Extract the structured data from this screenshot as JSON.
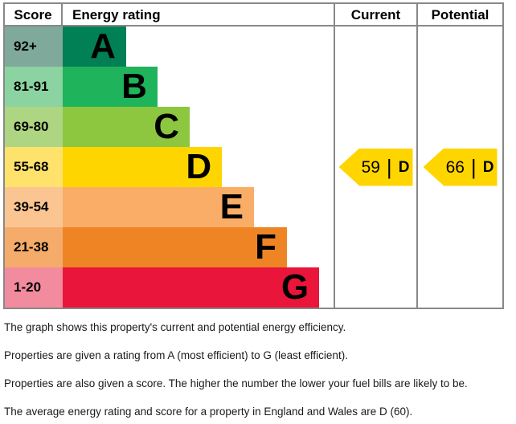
{
  "header": {
    "score": "Score",
    "energy_rating": "Energy rating",
    "current": "Current",
    "potential": "Potential"
  },
  "chart_data": {
    "type": "bar",
    "subtype": "epc-energy-efficiency-rating",
    "title": "Energy efficiency rating chart",
    "columns": [
      "Score",
      "Energy rating",
      "Current",
      "Potential"
    ],
    "bands": [
      {
        "letter": "A",
        "score_range": "92+",
        "bar_color": "#008054",
        "score_cell_color": "#7fa99a",
        "bar_width_pct": 23.4
      },
      {
        "letter": "B",
        "score_range": "81-91",
        "bar_color": "#1fb35b",
        "score_cell_color": "#8bd3a0",
        "bar_width_pct": 35.0
      },
      {
        "letter": "C",
        "score_range": "69-80",
        "bar_color": "#8dc63f",
        "score_cell_color": "#aed581",
        "bar_width_pct": 46.9
      },
      {
        "letter": "D",
        "score_range": "55-68",
        "bar_color": "#ffd500",
        "score_cell_color": "#fee26c",
        "bar_width_pct": 58.8
      },
      {
        "letter": "E",
        "score_range": "39-54",
        "bar_color": "#f9ad66",
        "score_cell_color": "#fbc591",
        "bar_width_pct": 70.6
      },
      {
        "letter": "F",
        "score_range": "21-38",
        "bar_color": "#ee8424",
        "score_cell_color": "#f5ab69",
        "bar_width_pct": 82.8
      },
      {
        "letter": "G",
        "score_range": "1-20",
        "bar_color": "#e9153b",
        "score_cell_color": "#f28b9e",
        "bar_width_pct": 94.7
      }
    ],
    "current": {
      "score": 59,
      "band": "D",
      "band_index": 3,
      "arrow_color": "#ffd500",
      "divider": "|"
    },
    "potential": {
      "score": 66,
      "band": "D",
      "band_index": 3,
      "arrow_color": "#ffd500",
      "divider": "|"
    },
    "colors": {
      "border": "#888888",
      "text": "#000000"
    },
    "legend_position": "none",
    "grid": false
  },
  "footer": {
    "lines": [
      "The graph shows this property's current and potential energy efficiency.",
      "Properties are given a rating from A (most efficient) to G (least efficient).",
      "Properties are also given a score. The higher the number the lower your fuel bills are likely to be.",
      "The average energy rating and score for a property in England and Wales are D (60)."
    ]
  }
}
